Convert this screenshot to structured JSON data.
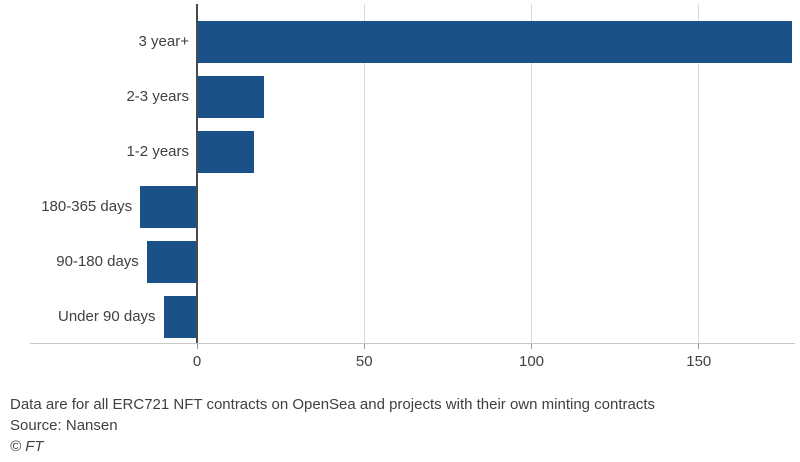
{
  "chart_data": {
    "type": "bar",
    "orientation": "horizontal",
    "title": "",
    "categories": [
      "3 year+",
      "2-3 years",
      "1-2 years",
      "180-365 days",
      "90-180 days",
      "Under 90 days"
    ],
    "values": [
      178,
      20,
      17,
      -17,
      -15,
      -10
    ],
    "x_ticks": [
      0,
      50,
      100,
      150
    ],
    "xlim": [
      -50,
      179
    ],
    "grid": "vertical-gridlines-at-ticks",
    "legend": "none",
    "colors": {
      "bar": "#1a5188",
      "gridline": "#d9d9d9",
      "zero_line": "#4a4a4a",
      "axis_line": "#c8c8c8",
      "tick": "#999999",
      "text": "#404040",
      "background": "#ffffff"
    },
    "footnote": "Data are for all ERC721 NFT contracts on OpenSea and projects with their own minting contracts",
    "source": "Source: Nansen",
    "credit": "© FT"
  }
}
